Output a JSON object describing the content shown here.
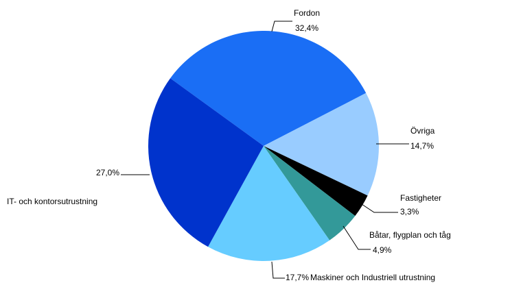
{
  "chart_data": {
    "type": "pie",
    "categories": [
      "Fordon",
      "Övriga",
      "Fastigheter",
      "Båtar, flygplan och tåg",
      "Maskiner och Industriell utrustning",
      "IT- och kontorsutrustning"
    ],
    "values": [
      32.4,
      14.7,
      3.3,
      4.9,
      17.7,
      27.0
    ],
    "value_labels": [
      "32,4%",
      "14,7%",
      "3,3%",
      "4,9%",
      "17,7%",
      "27,0%"
    ],
    "colors": [
      "#1a6ef5",
      "#99ccff",
      "#000000",
      "#339999",
      "#66ccff",
      "#0033cc"
    ]
  }
}
